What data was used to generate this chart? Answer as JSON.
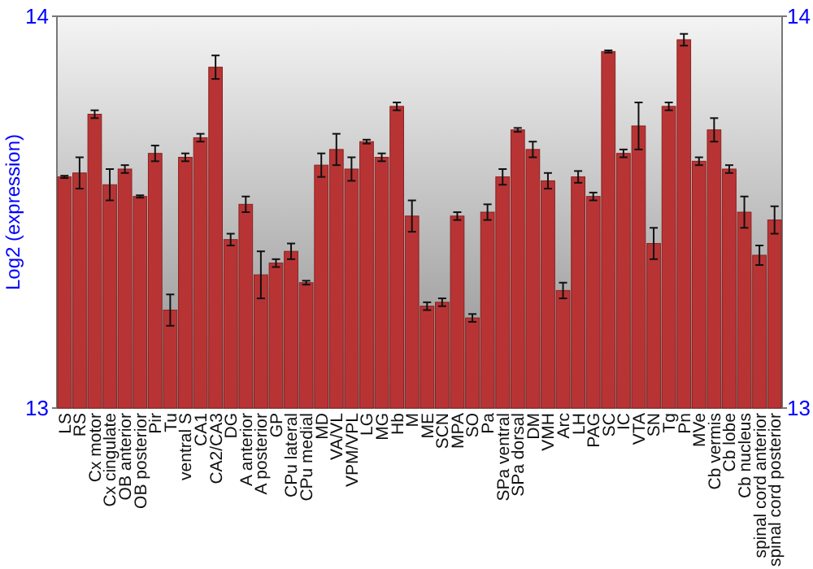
{
  "chart_data": {
    "type": "bar",
    "ylabel": "Log2 (expression)",
    "categories": [
      "LS",
      "RS",
      "Cx motor",
      "Cx cingulate",
      "OB anterior",
      "OB posterior",
      "Pir",
      "Tu",
      "ventral S",
      "CA1",
      "CA2/CA3",
      "DG",
      "A anterior",
      "A posterior",
      "GP",
      "CPu lateral",
      "CPu medial",
      "MD",
      "VA/VL",
      "VPM/VPL",
      "LG",
      "MG",
      "Hb",
      "M",
      "ME",
      "SCN",
      "MPA",
      "SO",
      "Pa",
      "SPa ventral",
      "SPa dorsal",
      "DM",
      "VMH",
      "Arc",
      "LH",
      "PAG",
      "SC",
      "IC",
      "VTA",
      "SN",
      "Tg",
      "Pn",
      "MVe",
      "Cb vermis",
      "Cb lobe",
      "Cb nucleus",
      "spinal cord anterior",
      "spinal cord posterior"
    ],
    "values": [
      13.59,
      13.6,
      13.75,
      13.57,
      13.61,
      13.54,
      13.65,
      13.25,
      13.64,
      13.69,
      13.87,
      13.43,
      13.52,
      13.34,
      13.37,
      13.4,
      13.32,
      13.62,
      13.66,
      13.61,
      13.68,
      13.64,
      13.77,
      13.49,
      13.26,
      13.27,
      13.49,
      13.23,
      13.5,
      13.59,
      13.71,
      13.66,
      13.58,
      13.3,
      13.59,
      13.54,
      13.91,
      13.65,
      13.72,
      13.42,
      13.77,
      13.94,
      13.63,
      13.71,
      13.61,
      13.5,
      13.39,
      13.48
    ],
    "errors": [
      0.003,
      0.04,
      0.01,
      0.04,
      0.01,
      0.003,
      0.02,
      0.04,
      0.01,
      0.01,
      0.03,
      0.015,
      0.02,
      0.06,
      0.01,
      0.02,
      0.005,
      0.03,
      0.04,
      0.03,
      0.005,
      0.01,
      0.01,
      0.04,
      0.01,
      0.01,
      0.01,
      0.01,
      0.02,
      0.02,
      0.005,
      0.02,
      0.02,
      0.02,
      0.015,
      0.01,
      0.003,
      0.01,
      0.06,
      0.04,
      0.01,
      0.015,
      0.01,
      0.03,
      0.01,
      0.04,
      0.025,
      0.035
    ],
    "color": "#b83434",
    "ylim": [
      13,
      14
    ],
    "yticks": [
      13,
      14
    ],
    "y2lim": [
      13,
      14
    ],
    "y2ticks": [
      13,
      14
    ]
  }
}
